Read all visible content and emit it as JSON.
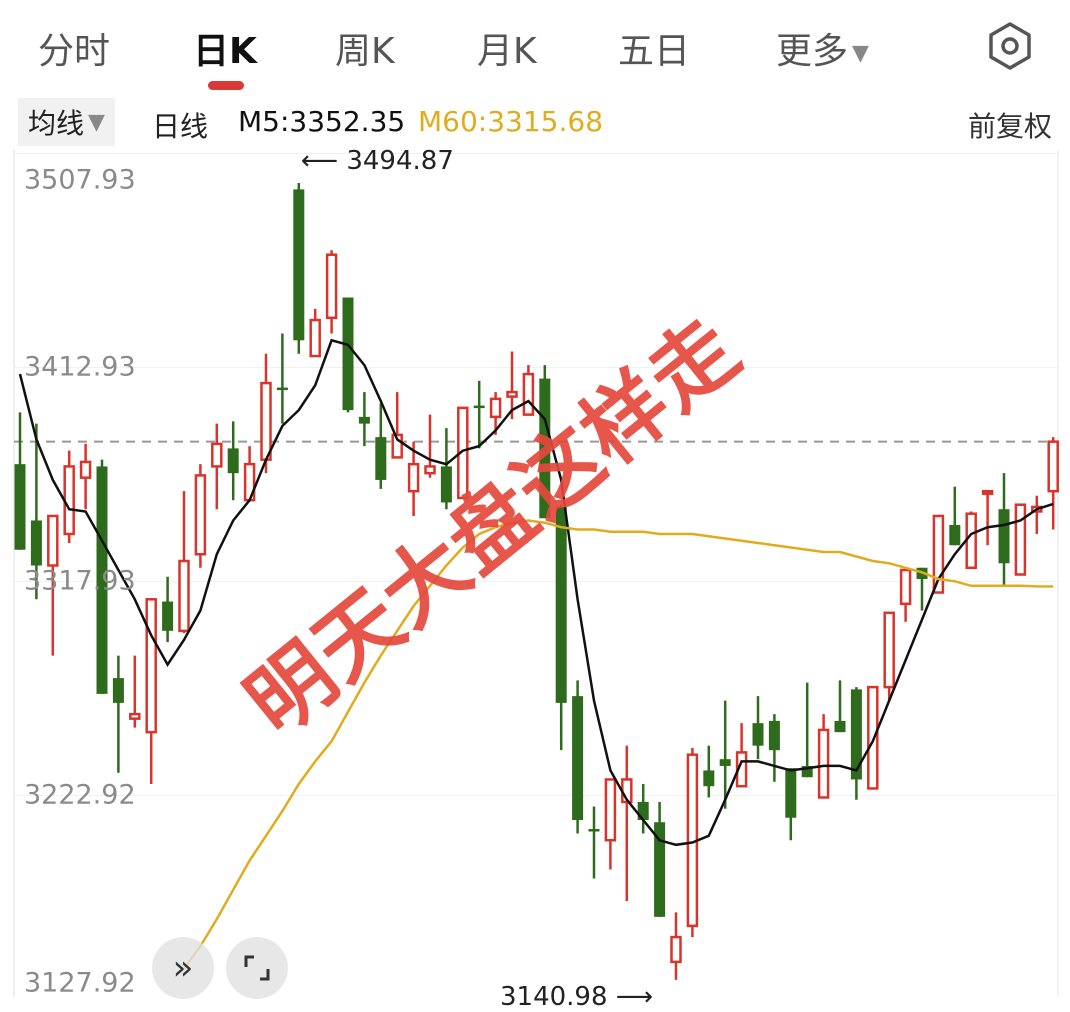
{
  "tabs": [
    {
      "label": "分时",
      "active": false
    },
    {
      "label": "日K",
      "active": true
    },
    {
      "label": "周K",
      "active": false
    },
    {
      "label": "月K",
      "active": false
    },
    {
      "label": "五日",
      "active": false
    },
    {
      "label": "更多",
      "active": false
    }
  ],
  "icons": {
    "settings": "hexagon-settings-icon",
    "more_caret": "caret-down-icon",
    "expand_left": "double-chevron-right-icon",
    "fullscreen": "fullscreen-corners-icon"
  },
  "ma_bar": {
    "selector": "均线",
    "period": "日线",
    "m5": "M5:3352.35",
    "m60": "M60:3315.68",
    "adjust": "前复权"
  },
  "colors": {
    "up": "#d9342b",
    "down": "#2f6b1c",
    "m5": "#111111",
    "m60": "#e0ac1e",
    "accent": "#d93a35",
    "overlay_text": "#e4483c"
  },
  "overlay_text": "明天大盘这样走",
  "chart_data": {
    "type": "candlestick",
    "y_tick_labels": [
      "3507.93",
      "3412.93",
      "3317.93",
      "3222.92",
      "3127.92"
    ],
    "y_ticks": [
      3507.93,
      3412.93,
      3317.93,
      3222.92,
      3127.92
    ],
    "ylim": [
      3133.4,
      3509.5
    ],
    "grid": true,
    "last_price_line": 3380,
    "high_label": "3494.87",
    "low_label": "3140.98",
    "high_index": 17,
    "low_index": 40,
    "candles": [
      [
        3370,
        3332,
        3393,
        3332
      ],
      [
        3345,
        3325,
        3388,
        3310
      ],
      [
        3325,
        3347,
        3347,
        3285
      ],
      [
        3339,
        3369,
        3376,
        3335
      ],
      [
        3364,
        3371,
        3379,
        3350
      ],
      [
        3369,
        3268,
        3372,
        3268
      ],
      [
        3275,
        3264,
        3285,
        3233
      ],
      [
        3257,
        3259,
        3285,
        3253
      ],
      [
        3251,
        3310,
        3310,
        3228
      ],
      [
        3309,
        3296,
        3320,
        3291
      ],
      [
        3296,
        3327,
        3358,
        3295
      ],
      [
        3330,
        3365,
        3370,
        3324
      ],
      [
        3369,
        3379,
        3388,
        3350
      ],
      [
        3377,
        3366,
        3389,
        3354
      ],
      [
        3354,
        3370,
        3378,
        3354
      ],
      [
        3372,
        3406,
        3419,
        3366
      ],
      [
        3404,
        3403,
        3428,
        3388
      ],
      [
        3492,
        3425,
        3494.87,
        3419
      ],
      [
        3418,
        3434,
        3439,
        3418
      ],
      [
        3435,
        3463,
        3465,
        3428
      ],
      [
        3444,
        3394,
        3444,
        3393
      ],
      [
        3391,
        3388,
        3402,
        3378
      ],
      [
        3382,
        3363,
        3397,
        3359
      ],
      [
        3373,
        3383,
        3402,
        3373
      ],
      [
        3358,
        3370,
        3380,
        3347
      ],
      [
        3366,
        3369,
        3392,
        3364
      ],
      [
        3369,
        3353,
        3386,
        3350
      ],
      [
        3355,
        3395,
        3395,
        3355
      ],
      [
        3396,
        3395,
        3407,
        3377
      ],
      [
        3391,
        3399,
        3402,
        3383
      ],
      [
        3400,
        3402,
        3420,
        3390
      ],
      [
        3392,
        3410,
        3414,
        3392
      ],
      [
        3408,
        3346,
        3414,
        3346
      ],
      [
        3351,
        3264,
        3352,
        3243
      ],
      [
        3267,
        3212,
        3274,
        3206
      ],
      [
        3208,
        3207,
        3218,
        3186
      ],
      [
        3203,
        3230,
        3230,
        3190
      ],
      [
        3220,
        3230,
        3245,
        3176
      ],
      [
        3220,
        3212,
        3228,
        3206
      ],
      [
        3211,
        3169,
        3220,
        3169
      ],
      [
        3149,
        3160,
        3171,
        3140.98
      ],
      [
        3165,
        3241,
        3244,
        3160
      ],
      [
        3234,
        3227,
        3245,
        3222
      ],
      [
        3239,
        3236,
        3265,
        3217
      ],
      [
        3227,
        3242,
        3255,
        3227
      ],
      [
        3255,
        3245,
        3267,
        3239
      ],
      [
        3256,
        3243,
        3259,
        3229
      ],
      [
        3235,
        3213,
        3235,
        3203
      ],
      [
        3236,
        3231,
        3273,
        3231
      ],
      [
        3222,
        3252,
        3259,
        3222
      ],
      [
        3256,
        3251,
        3274,
        3251
      ],
      [
        3270,
        3230,
        3271,
        3221
      ],
      [
        3226,
        3271,
        3271,
        3226
      ],
      [
        3271,
        3304,
        3304,
        3265
      ],
      [
        3308,
        3323,
        3324,
        3300
      ],
      [
        3324,
        3319,
        3324,
        3305
      ],
      [
        3313,
        3347,
        3347,
        3313
      ],
      [
        3343,
        3334,
        3360,
        3334
      ],
      [
        3324,
        3348,
        3349,
        3324
      ],
      [
        3357,
        3358,
        3358,
        3334
      ],
      [
        3350,
        3326,
        3366,
        3316
      ],
      [
        3321,
        3352,
        3352,
        3321
      ],
      [
        3349,
        3351,
        3356,
        3339
      ],
      [
        3358,
        3380,
        3382,
        3341
      ]
    ],
    "candle_fields": [
      "open",
      "close",
      "high",
      "low"
    ],
    "series": [
      {
        "name": "M5",
        "start_index": 0,
        "values": [
          3410,
          3381,
          3363,
          3350,
          3349,
          3336,
          3323,
          3310,
          3294,
          3281,
          3292,
          3305,
          3330,
          3345,
          3354,
          3372,
          3387,
          3394,
          3405,
          3425,
          3423,
          3414,
          3398,
          3381,
          3376,
          3372,
          3370,
          3376,
          3378,
          3385,
          3394,
          3398,
          3390,
          3363,
          3310,
          3265,
          3234,
          3221,
          3212,
          3203,
          3201,
          3202,
          3205,
          3221,
          3238,
          3238,
          3236,
          3234,
          3235,
          3236,
          3236,
          3234,
          3247,
          3265,
          3283,
          3301,
          3319,
          3330,
          3339,
          3342,
          3343,
          3345,
          3350,
          3352.35
        ]
      },
      {
        "name": "M60",
        "start_index": 10,
        "values": [
          3146,
          3156,
          3168,
          3181,
          3194,
          3205,
          3216,
          3228,
          3238,
          3247,
          3260,
          3273,
          3285,
          3296,
          3307,
          3316,
          3325,
          3333,
          3339,
          3342,
          3344,
          3345,
          3344,
          3342,
          3341,
          3341,
          3340,
          3340,
          3340,
          3339,
          3339,
          3339,
          3338,
          3337,
          3336,
          3335,
          3334,
          3333,
          3332,
          3331,
          3331,
          3329,
          3327,
          3326,
          3324,
          3322,
          3319,
          3318,
          3316,
          3316,
          3316,
          3316,
          3315.7,
          3315.68
        ]
      }
    ]
  }
}
